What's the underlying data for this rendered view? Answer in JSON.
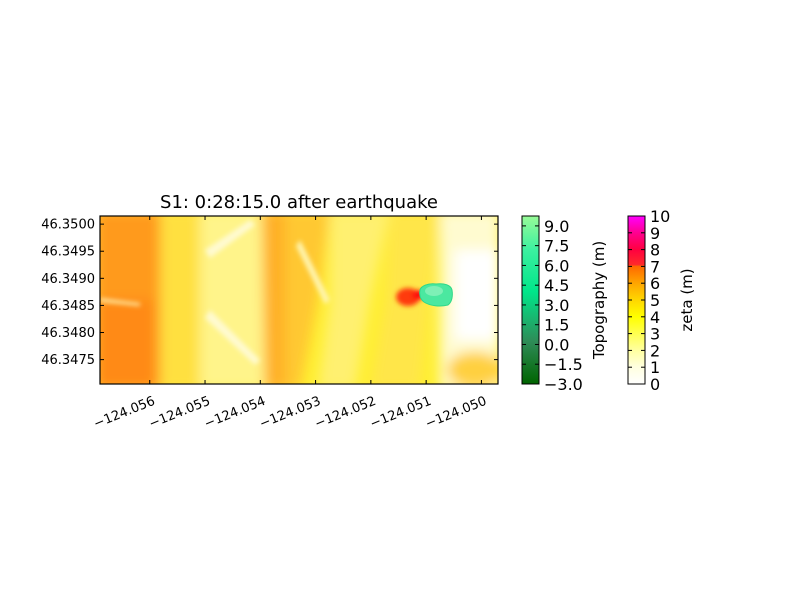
{
  "chart_data": [
    {
      "type": "heatmap",
      "title": "S1: 0:28:15.0 after earthquake",
      "xlabel": "",
      "ylabel": "",
      "x_ticks": [
        "−124.056",
        "−124.055",
        "−124.054",
        "−124.053",
        "−124.052",
        "−124.051",
        "−124.050"
      ],
      "x_tick_values": [
        -124.056,
        -124.055,
        -124.054,
        -124.053,
        -124.052,
        -124.051,
        -124.05
      ],
      "y_ticks": [
        "46.3500",
        "46.3495",
        "46.3490",
        "46.3485",
        "46.3480",
        "46.3475"
      ],
      "y_tick_values": [
        46.35,
        46.3495,
        46.349,
        46.3485,
        46.348,
        46.3475
      ],
      "xlim": [
        -124.0569,
        -124.0497
      ],
      "ylim": [
        46.34705,
        46.35015
      ],
      "grid": false,
      "fields": [
        {
          "name": "zeta",
          "units": "m",
          "range": [
            0,
            10
          ],
          "description_values": "flow depth over land mostly 3-7 m; higher (6-7 m) on west side and central band"
        },
        {
          "name": "topography",
          "units": "m",
          "range": [
            -3,
            10
          ],
          "description_values": "small dry patch near (-124.0509, 46.34865)"
        }
      ]
    },
    {
      "type": "colorbar",
      "label": "Topography (m)",
      "ticks": [
        "9.0",
        "7.5",
        "6.0",
        "4.5",
        "3.0",
        "1.5",
        "0.0",
        "−1.5",
        "−3.0"
      ],
      "tick_values": [
        9.0,
        7.5,
        6.0,
        4.5,
        3.0,
        1.5,
        0.0,
        -1.5,
        -3.0
      ],
      "range": [
        -3.0,
        9.75
      ],
      "colors": [
        "#006400",
        "#2e8b57",
        "#00fa9a",
        "#98fb98"
      ]
    },
    {
      "type": "colorbar",
      "label": "zeta (m)",
      "ticks": [
        "10",
        "9",
        "8",
        "7",
        "6",
        "5",
        "4",
        "3",
        "2",
        "1",
        "0"
      ],
      "tick_values": [
        10,
        9,
        8,
        7,
        6,
        5,
        4,
        3,
        2,
        1,
        0
      ],
      "range": [
        0,
        10
      ],
      "colors": [
        "#ffffff",
        "#ffff99",
        "#ffff00",
        "#ffd700",
        "#ff8c00",
        "#ff4500",
        "#ff0000",
        "#ff00ff"
      ]
    }
  ]
}
